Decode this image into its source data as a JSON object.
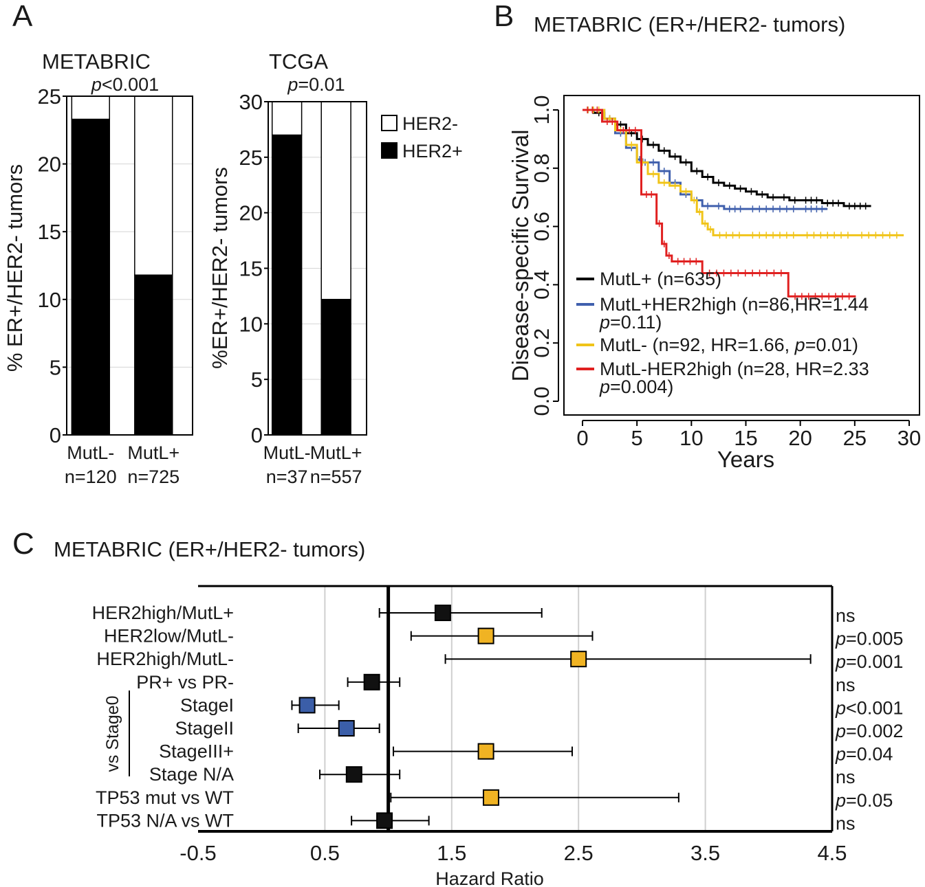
{
  "panels": {
    "a": {
      "letter": "A"
    },
    "b": {
      "letter": "B",
      "title": "METABRIC (ER+/HER2- tumors)"
    },
    "c": {
      "letter": "C",
      "title": "METABRIC (ER+/HER2- tumors)"
    }
  },
  "chart_data": [
    {
      "type": "bar",
      "stacked": true,
      "title": "METABRIC",
      "pvalue_italic": "p",
      "pvalue_rest": "<0.001",
      "ylabel": "% ER+/HER2- tumors",
      "ylim": [
        0,
        25
      ],
      "yticks": [
        0,
        5,
        10,
        15,
        20,
        25
      ],
      "grid": true,
      "categories": [
        "MutL-",
        "MutL+"
      ],
      "category_counts": [
        "n=120",
        "n=725"
      ],
      "series": [
        {
          "name": "HER2+",
          "color": "#000000",
          "values": [
            23.3,
            11.8
          ]
        },
        {
          "name": "HER2-",
          "color": "#ffffff",
          "values": [
            1.7,
            13.2
          ]
        }
      ]
    },
    {
      "type": "bar",
      "stacked": true,
      "title": "TCGA",
      "pvalue_italic": "p",
      "pvalue_rest": "=0.01",
      "ylabel": "%ER+/HER2- tumors",
      "ylim": [
        0,
        30
      ],
      "yticks": [
        0,
        5,
        10,
        15,
        20,
        25,
        30
      ],
      "grid": true,
      "categories": [
        "MutL-",
        "MutL+"
      ],
      "category_counts": [
        "n=37",
        "n=557"
      ],
      "series": [
        {
          "name": "HER2+",
          "color": "#000000",
          "values": [
            27.0,
            12.2
          ]
        },
        {
          "name": "HER2-",
          "color": "#ffffff",
          "values": [
            3.0,
            17.8
          ]
        }
      ],
      "legend": [
        {
          "label": "HER2-",
          "color": "#ffffff"
        },
        {
          "label": "HER2+",
          "color": "#000000"
        }
      ],
      "legend_position": "right"
    },
    {
      "type": "line",
      "subtype": "kaplan-meier",
      "xlabel": "Years",
      "ylabel": "Disease-specific Survival",
      "xlim": [
        0,
        30
      ],
      "ylim": [
        0,
        1
      ],
      "xticks": [
        0,
        5,
        10,
        15,
        20,
        25,
        30
      ],
      "yticks": [
        "0.0",
        "0.2",
        "0.4",
        "0.6",
        "0.8",
        "1.0"
      ],
      "legend_position": "bottom-left",
      "series": [
        {
          "name": "MutL+ (n=635)",
          "legend_lines": [
            [
              "",
              "MutL+ (n=635)"
            ]
          ],
          "color": "#000000",
          "x": [
            0,
            1,
            2,
            3,
            4,
            5,
            6,
            7,
            8,
            9,
            10,
            11,
            12,
            13,
            14,
            15,
            16,
            17,
            18,
            19,
            20,
            22,
            24,
            26.5
          ],
          "y": [
            1.0,
            0.99,
            0.97,
            0.95,
            0.92,
            0.9,
            0.88,
            0.86,
            0.84,
            0.82,
            0.79,
            0.77,
            0.75,
            0.74,
            0.73,
            0.72,
            0.71,
            0.7,
            0.7,
            0.69,
            0.69,
            0.68,
            0.67,
            0.67
          ]
        },
        {
          "name": "MutL+HER2high",
          "legend_lines": [
            [
              "",
              "MutL+HER2high (n=86,HR=1.44"
            ],
            [
              "p",
              "=0.11)"
            ]
          ],
          "color": "#4060ad",
          "x": [
            0,
            2,
            3,
            4,
            5,
            5.5,
            6,
            7,
            8,
            9,
            10,
            11,
            12,
            13,
            15,
            20,
            22.5
          ],
          "y": [
            1.0,
            0.97,
            0.92,
            0.87,
            0.83,
            0.82,
            0.82,
            0.79,
            0.75,
            0.71,
            0.69,
            0.67,
            0.67,
            0.66,
            0.66,
            0.66,
            0.66
          ]
        },
        {
          "name": "MutL-",
          "legend_lines": [
            [
              "",
              "MutL- (n=92, HR=1.66, "
            ],
            [
              "p",
              "=0.01)"
            ]
          ],
          "color": "#f0c419",
          "x": [
            0,
            2,
            3,
            4,
            5,
            6,
            7,
            8,
            9,
            10,
            10.5,
            11,
            11.5,
            12,
            15,
            20,
            25,
            29.5
          ],
          "y": [
            1.0,
            0.97,
            0.93,
            0.88,
            0.82,
            0.78,
            0.75,
            0.74,
            0.72,
            0.69,
            0.65,
            0.61,
            0.59,
            0.57,
            0.57,
            0.57,
            0.57,
            0.57
          ]
        },
        {
          "name": "MutL-HER2high",
          "legend_lines": [
            [
              "",
              "MutL-HER2high (n=28, HR=2.33"
            ],
            [
              "p",
              "=0.004)"
            ]
          ],
          "color": "#e02020",
          "x": [
            0,
            1.8,
            3.2,
            5.4,
            6.8,
            7.3,
            7.7,
            8.2,
            11,
            18.9,
            25.1
          ],
          "y": [
            1.0,
            0.96,
            0.93,
            0.71,
            0.61,
            0.54,
            0.5,
            0.48,
            0.44,
            0.36,
            0.36
          ]
        }
      ]
    },
    {
      "type": "forest",
      "xlabel": "Hazard Ratio",
      "xlim": [
        -0.5,
        4.5
      ],
      "xticks": [
        "-0.5",
        "0.5",
        "1.5",
        "2.5",
        "3.5",
        "4.5"
      ],
      "reference_line": 1,
      "grid": true,
      "group_label": "vs Stage0",
      "rows": [
        {
          "label": "HER2high/MutL+",
          "hr": 1.43,
          "lo": 0.93,
          "hi": 2.21,
          "color": "#111111",
          "sig_italic": "",
          "sig_rest": "ns"
        },
        {
          "label": "HER2low/MutL-",
          "hr": 1.77,
          "lo": 1.18,
          "hi": 2.61,
          "color": "#f0b323",
          "sig_italic": "p",
          "sig_rest": "=0.005"
        },
        {
          "label": "HER2high/MutL-",
          "hr": 2.5,
          "lo": 1.45,
          "hi": 4.33,
          "color": "#f0b323",
          "sig_italic": "p",
          "sig_rest": "=0.001"
        },
        {
          "label": "PR+ vs PR-",
          "hr": 0.87,
          "lo": 0.68,
          "hi": 1.09,
          "color": "#111111",
          "sig_italic": "",
          "sig_rest": "ns"
        },
        {
          "label": "StageI",
          "hr": 0.36,
          "lo": 0.24,
          "hi": 0.61,
          "color": "#3b5ea8",
          "sig_italic": "p",
          "sig_rest": "<0.001"
        },
        {
          "label": "StageII",
          "hr": 0.67,
          "lo": 0.29,
          "hi": 0.93,
          "color": "#3b5ea8",
          "sig_italic": "p",
          "sig_rest": "=0.002"
        },
        {
          "label": "StageIII+",
          "hr": 1.77,
          "lo": 1.04,
          "hi": 2.45,
          "color": "#f0b323",
          "sig_italic": "p",
          "sig_rest": "=0.04"
        },
        {
          "label": "Stage N/A",
          "hr": 0.73,
          "lo": 0.46,
          "hi": 1.09,
          "color": "#111111",
          "sig_italic": "",
          "sig_rest": "ns"
        },
        {
          "label": "TP53 mut vs WT",
          "hr": 1.81,
          "lo": 1.02,
          "hi": 3.29,
          "color": "#f0b323",
          "sig_italic": "p",
          "sig_rest": "=0.05"
        },
        {
          "label": "TP53 N/A vs WT",
          "hr": 0.97,
          "lo": 0.71,
          "hi": 1.32,
          "color": "#111111",
          "sig_italic": "",
          "sig_rest": "ns"
        }
      ]
    }
  ]
}
